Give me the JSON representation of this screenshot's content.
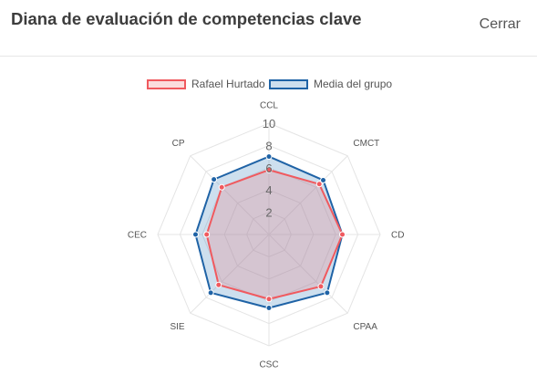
{
  "dialog": {
    "title": "Diana de evaluación de competencias clave",
    "close_label": "Cerrar"
  },
  "colors": {
    "series1_line": "#f05a5f",
    "series1_fill": "rgba(240,120,125,0.25)",
    "series2_line": "#1f63a6",
    "series2_fill": "rgba(90,150,200,0.30)",
    "grid": "#e4e4e4"
  },
  "chart_data": {
    "type": "radar",
    "categories": [
      "CCL",
      "CMCT",
      "CD",
      "CPAA",
      "CSC",
      "SIE",
      "CEC",
      "CP"
    ],
    "scale": {
      "min": 0,
      "max": 10,
      "ticks": [
        2,
        4,
        6,
        8,
        10
      ]
    },
    "series": [
      {
        "name": "Rafael Hurtado",
        "values": [
          5.8,
          6.4,
          6.6,
          6.6,
          5.8,
          6.4,
          5.6,
          6.0
        ]
      },
      {
        "name": "Media del grupo",
        "values": [
          7.0,
          6.9,
          6.6,
          7.4,
          6.6,
          7.4,
          6.6,
          7.0
        ]
      }
    ],
    "legend": "top-center"
  }
}
